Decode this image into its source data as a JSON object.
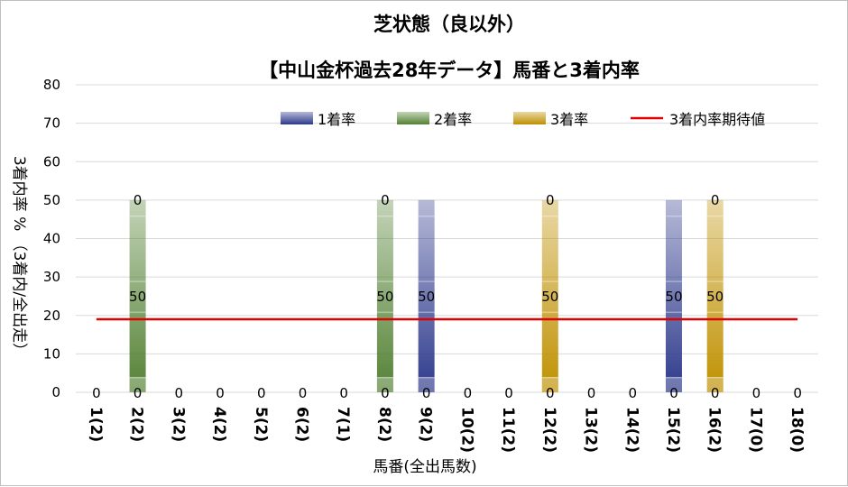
{
  "chart_data": {
    "type": "bar",
    "title": "芝状態（良以外）",
    "subtitle": "【中山金杯過去28年データ】馬番と3着内率",
    "xlabel": "馬番(全出馬数)",
    "ylabel": "3着内率 %  （3着内/全出走）",
    "ylim": [
      0,
      80
    ],
    "yticks": [
      0,
      10,
      20,
      30,
      40,
      50,
      60,
      70,
      80
    ],
    "grid": true,
    "legend_position": "top",
    "categories": [
      "1(2)",
      "2(2)",
      "3(2)",
      "4(2)",
      "5(2)",
      "6(2)",
      "7(1)",
      "8(2)",
      "9(2)",
      "10(2)",
      "11(2)",
      "12(2)",
      "13(2)",
      "14(2)",
      "15(2)",
      "16(2)",
      "17(0)",
      "18(0)"
    ],
    "series": [
      {
        "name": "1着率",
        "color": "#2e3a8c",
        "values": [
          0,
          0,
          0,
          0,
          0,
          0,
          0,
          0,
          50,
          0,
          0,
          0,
          0,
          0,
          50,
          0,
          0,
          0
        ]
      },
      {
        "name": "2着率",
        "color": "#548235",
        "values": [
          0,
          50,
          0,
          0,
          0,
          0,
          0,
          50,
          0,
          0,
          0,
          0,
          0,
          0,
          0,
          0,
          0,
          0
        ]
      },
      {
        "name": "3着率",
        "color": "#bf9000",
        "values": [
          0,
          0,
          0,
          0,
          0,
          0,
          0,
          0,
          0,
          0,
          0,
          50,
          0,
          0,
          0,
          50,
          0,
          0
        ]
      }
    ],
    "data_labels": {
      "bottom": [
        "0",
        "0",
        "0",
        "0",
        "0",
        "0",
        "0",
        "0",
        "0",
        "0",
        "0",
        "0",
        "0",
        "0",
        "0",
        "0",
        "0",
        "0"
      ],
      "middle": [
        "",
        "50",
        "",
        "",
        "",
        "",
        "",
        "50",
        "50",
        "",
        "",
        "50",
        "",
        "",
        "50",
        "50",
        "",
        ""
      ],
      "top": [
        "",
        "0",
        "",
        "",
        "",
        "",
        "",
        "0",
        "",
        "",
        "",
        "0",
        "",
        "",
        "",
        "0",
        "",
        ""
      ]
    },
    "reference_line": {
      "name": "3着内率期待値",
      "value": 19,
      "color": "#e00000"
    }
  }
}
